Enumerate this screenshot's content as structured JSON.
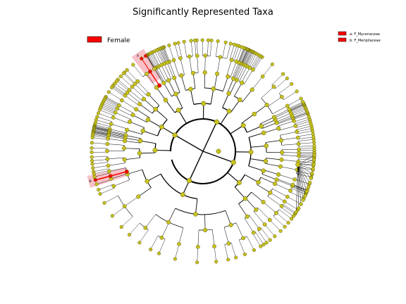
{
  "title": "Significantly Represented Taxa",
  "legend": {
    "group_label": "Female",
    "group_color": "#ff0000",
    "taxa": [
      {
        "marker": "a",
        "label": "a: F_Mycenaceae"
      },
      {
        "marker": "b",
        "label": "b: F_Meripilaceae"
      }
    ]
  },
  "colors": {
    "node_default": "#c8c21e",
    "node_edge": "#5a5a00",
    "highlight": "#ff0000",
    "highlight_shade": "#f7b6bd"
  },
  "tree": {
    "level_count": 6,
    "leaf_count": 180,
    "highlighted_clades": [
      {
        "marker": "a",
        "level": 5
      },
      {
        "marker": "b",
        "level": 5
      }
    ]
  }
}
